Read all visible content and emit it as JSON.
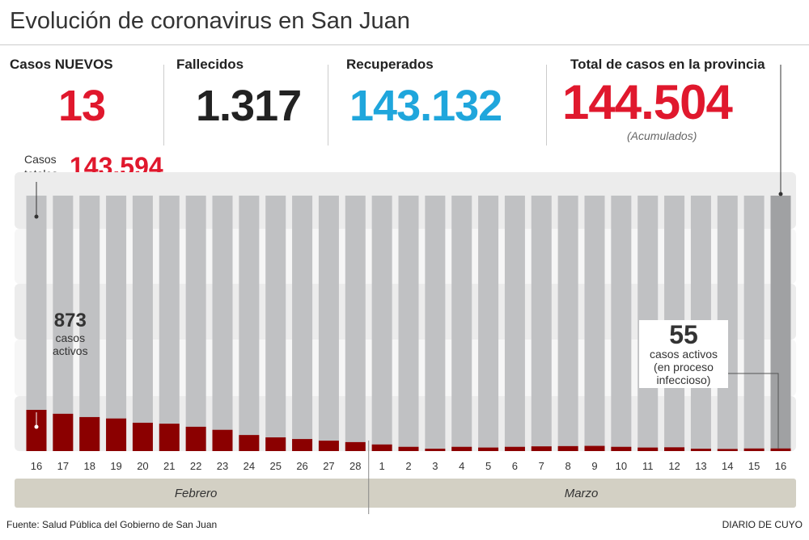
{
  "title": "Evolución de coronavirus en San Juan",
  "stats": {
    "nuevos": {
      "label": "Casos NUEVOS",
      "value": "13"
    },
    "fallecidos": {
      "label": "Fallecidos",
      "value": "1.317"
    },
    "recuperados": {
      "label": "Recuperados",
      "value": "143.132"
    },
    "total": {
      "label": "Total de casos en la provincia",
      "value": "144.504",
      "note": "(Acumulados)"
    },
    "totales": {
      "label1": "Casos",
      "label2": "totales",
      "value": "143.594"
    }
  },
  "annotations": {
    "start": {
      "value": "873",
      "l1": "casos",
      "l2": "activos"
    },
    "end": {
      "value": "55",
      "l1": "casos activos",
      "l2": "(en proceso",
      "l3": "infeccioso)"
    }
  },
  "colors": {
    "red": "#e0182d",
    "blue": "#1fa6dc",
    "active": "#8b0000",
    "bar": "#c0c1c3",
    "last_bar": "#a0a1a3",
    "month_band": "#d3d0c4"
  },
  "chart_data": {
    "type": "bar",
    "categories": [
      "16",
      "17",
      "18",
      "19",
      "20",
      "21",
      "22",
      "23",
      "24",
      "25",
      "26",
      "27",
      "28",
      "1",
      "2",
      "3",
      "4",
      "5",
      "6",
      "7",
      "8",
      "9",
      "10",
      "11",
      "12",
      "13",
      "14",
      "15",
      "16"
    ],
    "months": [
      {
        "name": "Febrero",
        "count": 13
      },
      {
        "name": "Marzo",
        "count": 16
      }
    ],
    "series": [
      {
        "name": "casos activos",
        "values": [
          873,
          790,
          720,
          690,
          600,
          580,
          515,
          450,
          340,
          290,
          255,
          220,
          190,
          140,
          90,
          50,
          90,
          75,
          90,
          100,
          105,
          110,
          90,
          75,
          80,
          50,
          45,
          55,
          55
        ]
      }
    ]
  },
  "footer": {
    "source": "Fuente: Salud Pública del Gobierno de San Juan",
    "brand": "DIARIO DE CUYO"
  }
}
